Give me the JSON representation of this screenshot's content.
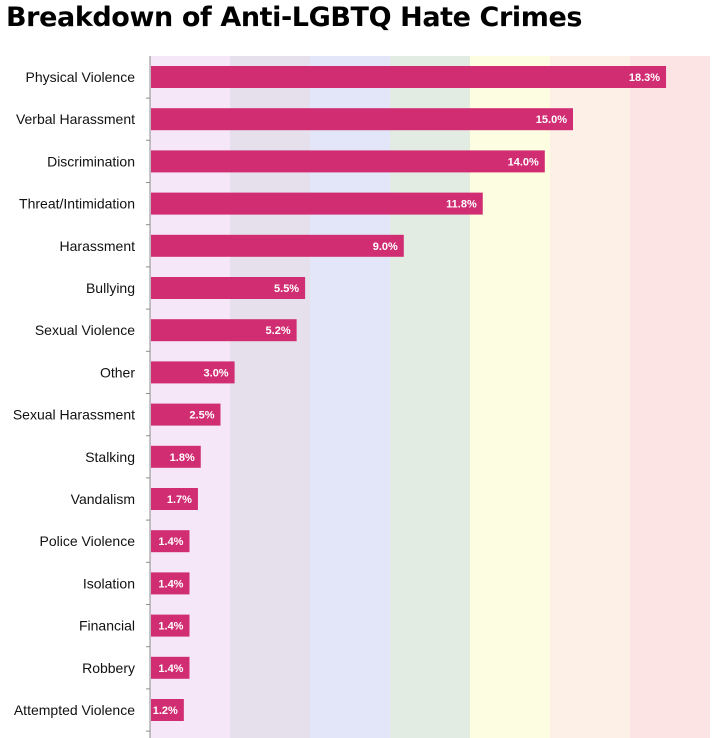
{
  "chart_data": {
    "type": "bar",
    "orientation": "horizontal",
    "title": "Breakdown of Anti-LGBTQ Hate Crimes",
    "xlabel": "",
    "ylabel": "",
    "categories": [
      "Physical Violence",
      "Verbal Harassment",
      "Discrimination",
      "Threat/Intimidation",
      "Harassment",
      "Bullying",
      "Sexual Violence",
      "Other",
      "Sexual Harassment",
      "Stalking",
      "Vandalism",
      "Police Violence",
      "Isolation",
      "Financial",
      "Robbery",
      "Attempted Violence"
    ],
    "values": [
      18.3,
      15.0,
      14.0,
      11.8,
      9.0,
      5.5,
      5.2,
      3.0,
      2.5,
      1.8,
      1.7,
      1.4,
      1.4,
      1.4,
      1.4,
      1.2
    ],
    "value_labels": [
      "18.3%",
      "15.0%",
      "14.0%",
      "11.8%",
      "9.0%",
      "5.5%",
      "5.2%",
      "3.0%",
      "2.5%",
      "1.8%",
      "1.7%",
      "1.4%",
      "1.4%",
      "1.4%",
      "1.4%",
      "1.2%"
    ],
    "xlim": [
      0,
      20
    ],
    "grid": false,
    "legend": "none",
    "bar_color": "#d12d72",
    "background_bands": [
      "#f5e6f8",
      "#e5e0ec",
      "#e2e6f8",
      "#e2ece2",
      "#fdfde2",
      "#fdf0e6",
      "#fde4e4"
    ]
  }
}
